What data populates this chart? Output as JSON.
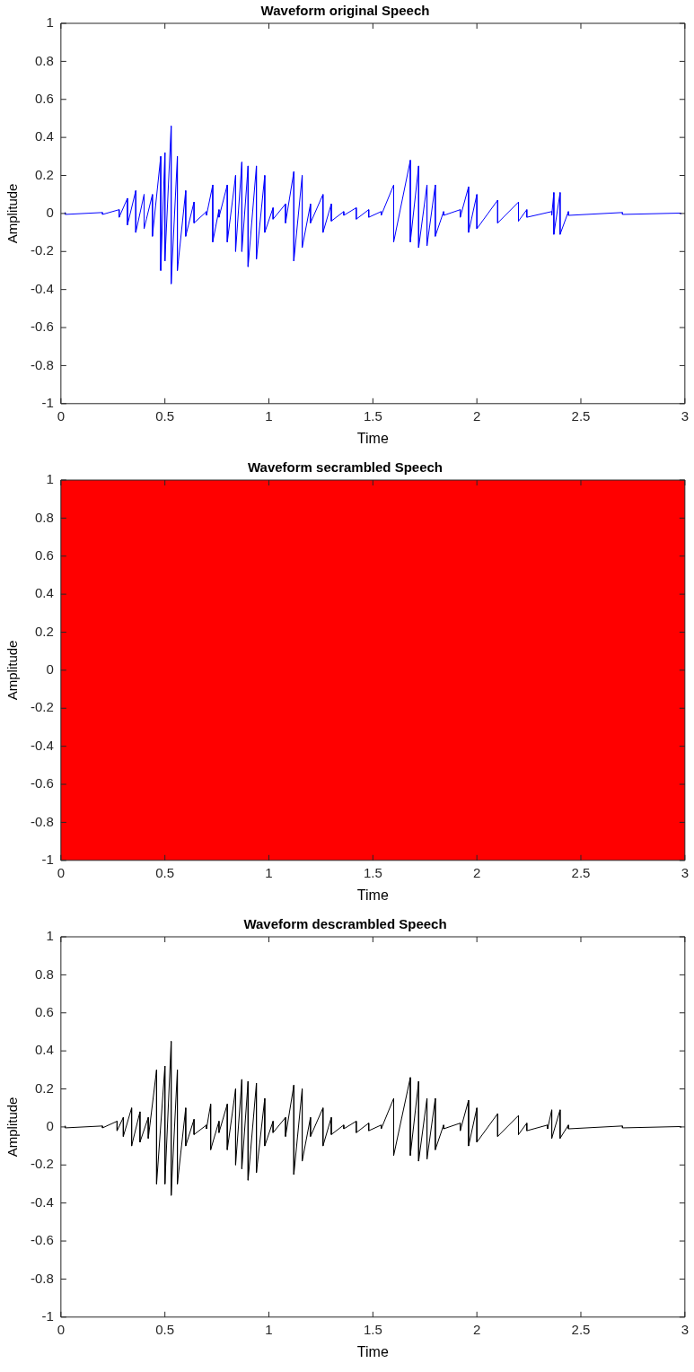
{
  "chart_data": [
    {
      "type": "line",
      "title": "Waveform original Speech",
      "xlabel": "Time",
      "ylabel": "Amplitude",
      "xlim": [
        0,
        3
      ],
      "xticks": [
        0,
        0.5,
        1,
        1.5,
        2,
        2.5,
        3
      ],
      "ylim": [
        -1,
        1
      ],
      "yticks": [
        -1,
        -0.8,
        -0.6,
        -0.4,
        -0.2,
        0,
        0.2,
        0.4,
        0.6,
        0.8,
        1
      ],
      "grid": false,
      "legend": false,
      "series": [
        {
          "color": "#0000ff",
          "x": [
            0.02,
            0.02,
            0.2,
            0.2,
            0.28,
            0.28,
            0.32,
            0.32,
            0.36,
            0.36,
            0.4,
            0.4,
            0.44,
            0.44,
            0.48,
            0.48,
            0.5,
            0.5,
            0.53,
            0.53,
            0.56,
            0.56,
            0.6,
            0.6,
            0.64,
            0.64,
            0.7,
            0.7,
            0.73,
            0.73,
            0.76,
            0.76,
            0.8,
            0.8,
            0.84,
            0.84,
            0.87,
            0.87,
            0.9,
            0.9,
            0.94,
            0.94,
            0.98,
            0.98,
            1.02,
            1.02,
            1.08,
            1.08,
            1.12,
            1.12,
            1.16,
            1.16,
            1.2,
            1.2,
            1.26,
            1.26,
            1.3,
            1.3,
            1.36,
            1.36,
            1.42,
            1.42,
            1.48,
            1.48,
            1.54,
            1.54,
            1.6,
            1.6,
            1.68,
            1.68,
            1.72,
            1.72,
            1.76,
            1.76,
            1.8,
            1.8,
            1.84,
            1.84,
            1.92,
            1.92,
            1.96,
            1.96,
            2,
            2,
            2.1,
            2.1,
            2.2,
            2.2,
            2.24,
            2.24,
            2.36,
            2.36,
            2.37,
            2.37,
            2.4,
            2.4,
            2.44,
            2.44,
            2.7,
            2.7,
            2.98,
            2.98
          ],
          "values": [
            0.005,
            -0.005,
            0.005,
            -0.005,
            0.02,
            -0.02,
            0.08,
            -0.06,
            0.12,
            -0.1,
            0.1,
            -0.08,
            0.1,
            -0.12,
            0.3,
            -0.3,
            0.32,
            -0.25,
            0.46,
            -0.37,
            0.3,
            -0.3,
            0.12,
            -0.12,
            0.06,
            -0.05,
            0.01,
            -0.01,
            0.15,
            -0.15,
            0.02,
            -0.02,
            0.15,
            -0.15,
            0.2,
            -0.2,
            0.27,
            -0.2,
            0.25,
            -0.28,
            0.25,
            -0.24,
            0.2,
            -0.1,
            0.03,
            -0.03,
            0.05,
            -0.05,
            0.22,
            -0.25,
            0.2,
            -0.18,
            0.05,
            -0.05,
            0.1,
            -0.1,
            0.05,
            -0.04,
            0.01,
            -0.01,
            0.03,
            -0.03,
            0.02,
            -0.02,
            0.01,
            -0.01,
            0.15,
            -0.15,
            0.28,
            -0.15,
            0.25,
            -0.18,
            0.15,
            -0.17,
            0.15,
            -0.12,
            0.01,
            -0.01,
            0.02,
            -0.02,
            0.14,
            -0.1,
            0.1,
            -0.08,
            0.07,
            -0.05,
            0.06,
            -0.04,
            0.02,
            -0.02,
            0.01,
            -0.01,
            0.11,
            -0.11,
            0.11,
            -0.11,
            0.01,
            -0.01,
            0.005,
            -0.005,
            0.002,
            -0.002
          ]
        }
      ]
    },
    {
      "type": "line",
      "title": "Waveform secrambled Speech",
      "xlabel": "Time",
      "ylabel": "Amplitude",
      "xlim": [
        0,
        3
      ],
      "xticks": [
        0,
        0.5,
        1,
        1.5,
        2,
        2.5,
        3
      ],
      "ylim": [
        -1,
        1
      ],
      "yticks": [
        -1,
        -0.8,
        -0.6,
        -0.4,
        -0.2,
        0,
        0.2,
        0.4,
        0.6,
        0.8,
        1
      ],
      "grid": false,
      "legend": false,
      "series": [
        {
          "color": "#ff0000",
          "x": [
            0,
            0.03,
            0.06,
            0.09,
            0.12,
            0.15,
            0.18,
            0.21,
            0.24,
            0.27,
            0.3,
            0.33,
            0.36,
            0.39,
            0.42,
            0.45,
            0.48,
            0.51,
            0.54,
            0.57,
            0.6,
            0.63,
            0.66,
            0.69,
            0.72,
            0.75,
            0.78,
            0.81,
            0.84,
            0.87,
            0.9,
            0.93,
            0.96,
            0.99,
            1.02,
            1.05,
            1.08,
            1.11,
            1.14,
            1.17,
            1.2,
            1.23,
            1.26,
            1.29,
            1.32,
            1.35,
            1.38,
            1.41,
            1.44,
            1.47,
            1.5,
            1.53,
            1.56,
            1.59,
            1.62,
            1.65,
            1.68,
            1.71,
            1.74,
            1.77,
            1.8,
            1.83,
            1.86,
            1.89,
            1.92,
            1.95,
            1.98,
            2.01,
            2.04,
            2.07,
            2.1,
            2.13,
            2.16,
            2.19,
            2.22,
            2.25,
            2.28,
            2.31,
            2.34,
            2.37,
            2.4,
            2.43,
            2.46,
            2.49,
            2.52,
            2.55,
            2.58,
            2.61,
            2.64,
            2.67,
            2.7,
            2.73,
            2.76,
            2.79,
            2.82,
            2.85,
            2.88,
            2.91,
            2.94,
            2.97,
            3
          ],
          "values": [
            1,
            -1,
            1,
            -1,
            1,
            -1,
            1,
            -1,
            1,
            -1,
            1,
            -1,
            1,
            -1,
            1,
            -1,
            1,
            -1,
            1,
            -1,
            1,
            -1,
            1,
            -1,
            1,
            -1,
            1,
            -1,
            1,
            -1,
            1,
            -1,
            1,
            -1,
            1,
            -1,
            1,
            -1,
            1,
            -1,
            1,
            -1,
            1,
            -1,
            1,
            -1,
            1,
            -1,
            1,
            -1,
            1,
            -1,
            1,
            -1,
            1,
            -1,
            1,
            -1,
            1,
            -1,
            1,
            -1,
            1,
            -1,
            1,
            -1,
            1,
            -1,
            1,
            -1,
            1,
            -1,
            1,
            -1,
            1,
            -1,
            1,
            -1,
            1,
            -1,
            1,
            -1,
            1,
            -1,
            1,
            -1,
            1,
            -1,
            1,
            -1,
            1,
            -1,
            1,
            -1,
            1,
            -1,
            1,
            -1,
            1,
            -1,
            1
          ]
        }
      ]
    },
    {
      "type": "line",
      "title": "Waveform descrambled Speech",
      "xlabel": "Time",
      "ylabel": "Amplitude",
      "xlim": [
        0,
        3
      ],
      "xticks": [
        0,
        0.5,
        1,
        1.5,
        2,
        2.5,
        3
      ],
      "ylim": [
        -1,
        1
      ],
      "yticks": [
        -1,
        -0.8,
        -0.6,
        -0.4,
        -0.2,
        0,
        0.2,
        0.4,
        0.6,
        0.8,
        1
      ],
      "grid": false,
      "legend": false,
      "series": [
        {
          "color": "#000000",
          "x": [
            0.02,
            0.02,
            0.2,
            0.2,
            0.27,
            0.27,
            0.3,
            0.3,
            0.34,
            0.34,
            0.38,
            0.38,
            0.42,
            0.42,
            0.46,
            0.46,
            0.5,
            0.5,
            0.53,
            0.53,
            0.56,
            0.56,
            0.6,
            0.6,
            0.64,
            0.64,
            0.7,
            0.7,
            0.72,
            0.72,
            0.76,
            0.76,
            0.8,
            0.8,
            0.84,
            0.84,
            0.87,
            0.87,
            0.9,
            0.9,
            0.94,
            0.94,
            0.98,
            0.98,
            1.02,
            1.02,
            1.08,
            1.08,
            1.12,
            1.12,
            1.16,
            1.16,
            1.2,
            1.2,
            1.26,
            1.26,
            1.3,
            1.3,
            1.36,
            1.36,
            1.42,
            1.42,
            1.48,
            1.48,
            1.54,
            1.54,
            1.6,
            1.6,
            1.68,
            1.68,
            1.72,
            1.72,
            1.76,
            1.76,
            1.8,
            1.8,
            1.84,
            1.84,
            1.92,
            1.92,
            1.96,
            1.96,
            2,
            2,
            2.1,
            2.1,
            2.2,
            2.2,
            2.24,
            2.24,
            2.34,
            2.34,
            2.36,
            2.36,
            2.4,
            2.4,
            2.44,
            2.44,
            2.7,
            2.7,
            2.98,
            2.98
          ],
          "values": [
            0.005,
            -0.005,
            0.005,
            -0.005,
            0.03,
            -0.02,
            0.05,
            -0.05,
            0.1,
            -0.1,
            0.08,
            -0.08,
            0.05,
            -0.06,
            0.3,
            -0.3,
            0.32,
            -0.3,
            0.45,
            -0.36,
            0.3,
            -0.3,
            0.1,
            -0.1,
            0.04,
            -0.04,
            0.01,
            -0.01,
            0.12,
            -0.12,
            0.03,
            -0.03,
            0.12,
            -0.12,
            0.2,
            -0.2,
            0.25,
            -0.22,
            0.24,
            -0.28,
            0.23,
            -0.24,
            0.15,
            -0.1,
            0.03,
            -0.03,
            0.05,
            -0.05,
            0.22,
            -0.25,
            0.2,
            -0.18,
            0.05,
            -0.05,
            0.1,
            -0.1,
            0.05,
            -0.04,
            0.01,
            -0.01,
            0.03,
            -0.03,
            0.02,
            -0.02,
            0.01,
            -0.01,
            0.15,
            -0.15,
            0.26,
            -0.15,
            0.24,
            -0.18,
            0.15,
            -0.17,
            0.15,
            -0.12,
            0.01,
            -0.01,
            0.02,
            -0.02,
            0.14,
            -0.1,
            0.1,
            -0.08,
            0.07,
            -0.05,
            0.06,
            -0.04,
            0.02,
            -0.02,
            0.01,
            -0.01,
            0.09,
            -0.06,
            0.09,
            -0.06,
            0.01,
            -0.01,
            0.005,
            -0.005,
            0.002,
            -0.002
          ]
        }
      ]
    }
  ]
}
